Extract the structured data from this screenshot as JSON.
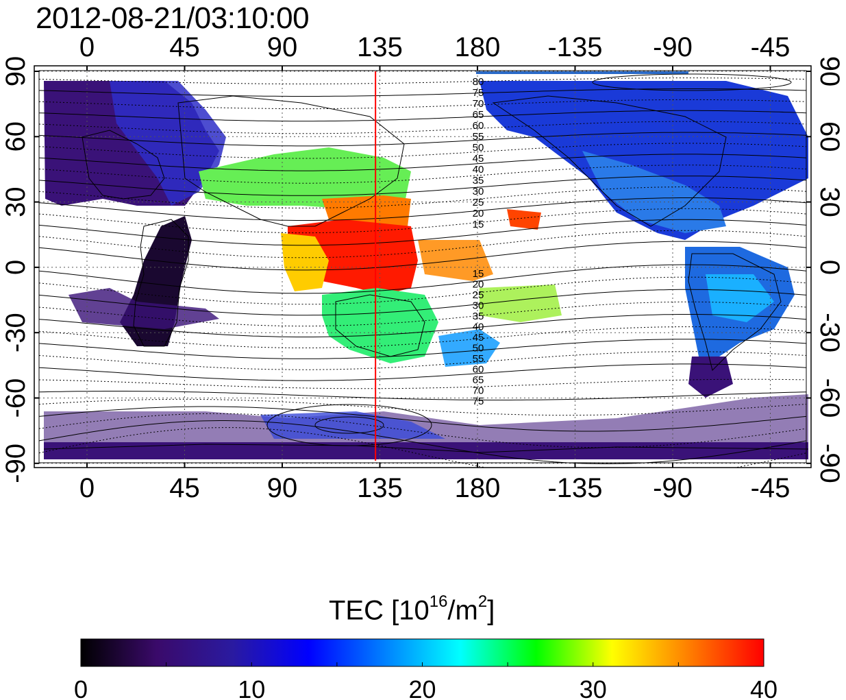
{
  "title": "2012-08-21/03:10:00",
  "map": {
    "top_lon_ticks": [
      "0",
      "45",
      "90",
      "135",
      "180",
      "-135",
      "-90",
      "-45"
    ],
    "bottom_lon_ticks": [
      "0",
      "45",
      "90",
      "135",
      "180",
      "-135",
      "-90",
      "-45"
    ],
    "left_lat_ticks": [
      "90",
      "60",
      "30",
      "0",
      "-30",
      "-60",
      "-90"
    ],
    "right_lat_ticks": [
      "90",
      "60",
      "30",
      "0",
      "-30",
      "-60",
      "-90"
    ],
    "contour_labels_north": [
      "80",
      "75",
      "70",
      "65",
      "60",
      "55",
      "50",
      "45",
      "40",
      "35",
      "30",
      "25",
      "20",
      "15"
    ],
    "contour_labels_south": [
      "15",
      "20",
      "25",
      "30",
      "35",
      "40",
      "45",
      "50",
      "55",
      "60",
      "65",
      "70",
      "75"
    ],
    "marker_longitude": 133,
    "marker_color": "#ff0000"
  },
  "colorbar": {
    "title_prefix": "TEC  [10",
    "title_exp1": "16",
    "title_mid": "/m",
    "title_exp2": "2",
    "title_suffix": "]",
    "ticks": [
      "0",
      "10",
      "20",
      "30",
      "40"
    ],
    "min": 0,
    "max": 40,
    "colors": [
      "#000000",
      "#3a0a6a",
      "#2a1aa0",
      "#0000ff",
      "#0080ff",
      "#00ffff",
      "#00ff00",
      "#ffff00",
      "#ff8000",
      "#ff0000"
    ]
  }
}
